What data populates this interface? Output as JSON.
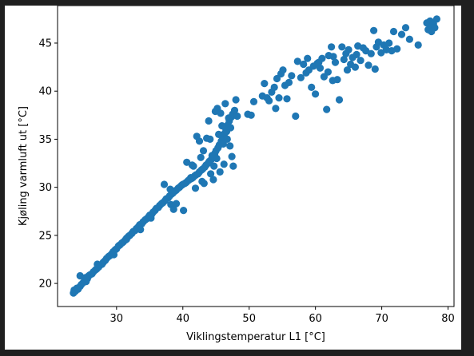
{
  "chart_data": {
    "type": "scatter",
    "title": "",
    "xlabel": "Viklingstemperatur L1 [°C]",
    "ylabel": "Kjøling varmluft ut [°C]",
    "xlim": [
      21.1,
      80.9
    ],
    "ylim": [
      17.6,
      48.9
    ],
    "xticks": [
      30,
      40,
      50,
      60,
      70,
      80
    ],
    "yticks": [
      20,
      25,
      30,
      35,
      40,
      45
    ],
    "xtick_labels": [
      "30",
      "40",
      "50",
      "60",
      "70",
      "80"
    ],
    "ytick_labels": [
      "20",
      "25",
      "30",
      "35",
      "40",
      "45"
    ],
    "grid": false,
    "legend": "none",
    "marker_color": "#1f77b4",
    "series": [
      {
        "points": [
          [
            23.5,
            19.0
          ],
          [
            23.6,
            19.3
          ],
          [
            23.8,
            19.2
          ],
          [
            24.0,
            19.5
          ],
          [
            24.2,
            19.4
          ],
          [
            24.5,
            19.7
          ],
          [
            24.7,
            19.9
          ],
          [
            25.0,
            20.1
          ],
          [
            25.2,
            20.3
          ],
          [
            25.4,
            20.2
          ],
          [
            25.6,
            20.5
          ],
          [
            25.8,
            20.8
          ],
          [
            26.0,
            20.9
          ],
          [
            26.3,
            21.0
          ],
          [
            26.5,
            21.2
          ],
          [
            26.8,
            21.4
          ],
          [
            27.0,
            21.5
          ],
          [
            27.3,
            21.7
          ],
          [
            27.5,
            21.9
          ],
          [
            27.8,
            22.0
          ],
          [
            28.0,
            22.2
          ],
          [
            28.3,
            22.4
          ],
          [
            28.5,
            22.6
          ],
          [
            28.8,
            22.8
          ],
          [
            29.0,
            22.9
          ],
          [
            29.3,
            23.1
          ],
          [
            29.5,
            23.3
          ],
          [
            29.8,
            23.5
          ],
          [
            30.0,
            23.6
          ],
          [
            30.3,
            23.9
          ],
          [
            30.5,
            24.0
          ],
          [
            30.8,
            24.2
          ],
          [
            31.0,
            24.3
          ],
          [
            31.3,
            24.5
          ],
          [
            31.5,
            24.7
          ],
          [
            31.8,
            24.9
          ],
          [
            32.0,
            25.0
          ],
          [
            32.3,
            25.2
          ],
          [
            32.5,
            25.4
          ],
          [
            32.8,
            25.5
          ],
          [
            33.0,
            25.7
          ],
          [
            33.3,
            25.9
          ],
          [
            33.5,
            26.1
          ],
          [
            33.8,
            26.2
          ],
          [
            34.0,
            26.4
          ],
          [
            34.3,
            26.6
          ],
          [
            34.5,
            26.7
          ],
          [
            34.8,
            26.9
          ],
          [
            35.0,
            27.1
          ],
          [
            35.3,
            27.2
          ],
          [
            35.5,
            27.4
          ],
          [
            35.8,
            27.6
          ],
          [
            36.0,
            27.8
          ],
          [
            36.3,
            27.9
          ],
          [
            36.5,
            28.1
          ],
          [
            36.8,
            28.3
          ],
          [
            37.0,
            28.4
          ],
          [
            37.3,
            28.6
          ],
          [
            37.5,
            28.8
          ],
          [
            37.8,
            28.9
          ],
          [
            38.0,
            29.1
          ],
          [
            38.3,
            29.3
          ],
          [
            38.5,
            29.4
          ],
          [
            38.8,
            29.6
          ],
          [
            39.0,
            29.7
          ],
          [
            39.3,
            29.9
          ],
          [
            39.5,
            30.0
          ],
          [
            39.8,
            30.2
          ],
          [
            40.0,
            30.3
          ],
          [
            40.3,
            30.4
          ],
          [
            40.5,
            30.5
          ],
          [
            40.8,
            30.7
          ],
          [
            41.0,
            30.8
          ],
          [
            41.3,
            30.9
          ],
          [
            41.5,
            31.0
          ],
          [
            41.8,
            31.2
          ],
          [
            42.0,
            31.3
          ],
          [
            42.3,
            31.4
          ],
          [
            42.5,
            31.6
          ],
          [
            42.8,
            31.8
          ],
          [
            43.0,
            31.9
          ],
          [
            43.3,
            32.1
          ],
          [
            43.5,
            32.3
          ],
          [
            43.8,
            32.5
          ],
          [
            44.0,
            32.7
          ],
          [
            44.3,
            32.9
          ],
          [
            44.5,
            33.2
          ],
          [
            44.8,
            33.5
          ],
          [
            45.0,
            33.8
          ],
          [
            45.3,
            34.1
          ],
          [
            45.5,
            34.4
          ],
          [
            45.8,
            34.8
          ],
          [
            46.0,
            35.2
          ],
          [
            46.3,
            35.6
          ],
          [
            46.5,
            36.0
          ],
          [
            46.8,
            36.5
          ],
          [
            47.0,
            36.9
          ],
          [
            47.3,
            37.3
          ],
          [
            47.5,
            37.6
          ],
          [
            47.8,
            38.0
          ],
          [
            24.5,
            20.8
          ],
          [
            25.3,
            20.6
          ],
          [
            27.1,
            22.0
          ],
          [
            29.6,
            23.0
          ],
          [
            31.5,
            24.6
          ],
          [
            33.6,
            25.6
          ],
          [
            35.2,
            26.8
          ],
          [
            37.2,
            30.3
          ],
          [
            38.1,
            29.8
          ],
          [
            38.2,
            28.2
          ],
          [
            38.6,
            27.7
          ],
          [
            39.0,
            28.3
          ],
          [
            40.1,
            27.6
          ],
          [
            40.6,
            32.6
          ],
          [
            41.2,
            31.0
          ],
          [
            41.6,
            32.2
          ],
          [
            41.9,
            29.9
          ],
          [
            42.1,
            35.3
          ],
          [
            42.5,
            34.8
          ],
          [
            42.7,
            33.1
          ],
          [
            43.1,
            33.8
          ],
          [
            43.2,
            30.4
          ],
          [
            43.6,
            35.1
          ],
          [
            43.9,
            36.9
          ],
          [
            44.1,
            35.0
          ],
          [
            44.4,
            33.3
          ],
          [
            44.6,
            30.8
          ],
          [
            44.9,
            37.9
          ],
          [
            45.2,
            38.2
          ],
          [
            45.4,
            35.5
          ],
          [
            45.7,
            37.7
          ],
          [
            45.9,
            36.4
          ],
          [
            46.1,
            34.5
          ],
          [
            46.4,
            38.7
          ],
          [
            46.6,
            35.8
          ],
          [
            46.9,
            37.2
          ],
          [
            47.1,
            34.3
          ],
          [
            47.4,
            33.2
          ],
          [
            47.6,
            32.2
          ],
          [
            48.0,
            39.1
          ],
          [
            48.2,
            37.4
          ],
          [
            46.2,
            32.4
          ],
          [
            45.6,
            31.6
          ],
          [
            44.2,
            31.4
          ],
          [
            42.9,
            30.6
          ],
          [
            44.7,
            32.2
          ],
          [
            45.1,
            33.0
          ],
          [
            46.7,
            35.0
          ],
          [
            47.2,
            36.2
          ],
          [
            41.4,
            32.3
          ],
          [
            49.8,
            37.6
          ],
          [
            50.3,
            37.5
          ],
          [
            52.0,
            39.5
          ],
          [
            52.3,
            40.8
          ],
          [
            52.7,
            39.3
          ],
          [
            53.0,
            39.0
          ],
          [
            53.4,
            39.9
          ],
          [
            53.8,
            40.4
          ],
          [
            54.2,
            41.3
          ],
          [
            54.5,
            39.3
          ],
          [
            54.8,
            41.8
          ],
          [
            55.1,
            42.2
          ],
          [
            55.4,
            40.6
          ],
          [
            55.7,
            39.2
          ],
          [
            56.0,
            40.9
          ],
          [
            56.4,
            41.6
          ],
          [
            57.0,
            37.4
          ],
          [
            57.3,
            43.1
          ],
          [
            57.8,
            41.4
          ],
          [
            58.2,
            42.8
          ],
          [
            58.6,
            41.9
          ],
          [
            59.0,
            42.2
          ],
          [
            59.4,
            40.4
          ],
          [
            59.7,
            42.6
          ],
          [
            60.0,
            39.7
          ],
          [
            60.3,
            42.9
          ],
          [
            60.7,
            42.4
          ],
          [
            61.0,
            43.4
          ],
          [
            61.3,
            41.5
          ],
          [
            61.7,
            38.1
          ],
          [
            62.0,
            43.7
          ],
          [
            62.4,
            44.6
          ],
          [
            62.7,
            43.6
          ],
          [
            63.0,
            43.0
          ],
          [
            63.3,
            41.2
          ],
          [
            63.6,
            39.1
          ],
          [
            64.0,
            44.6
          ],
          [
            64.3,
            43.3
          ],
          [
            64.6,
            43.9
          ],
          [
            65.0,
            44.3
          ],
          [
            65.3,
            42.8
          ],
          [
            65.6,
            43.5
          ],
          [
            66.0,
            42.5
          ],
          [
            66.4,
            44.7
          ],
          [
            66.8,
            43.2
          ],
          [
            67.2,
            44.5
          ],
          [
            67.6,
            44.2
          ],
          [
            68.0,
            42.7
          ],
          [
            68.4,
            43.9
          ],
          [
            68.8,
            46.3
          ],
          [
            69.2,
            44.6
          ],
          [
            69.5,
            45.1
          ],
          [
            69.9,
            44.0
          ],
          [
            70.3,
            44.8
          ],
          [
            70.7,
            44.3
          ],
          [
            71.1,
            45.0
          ],
          [
            71.8,
            46.2
          ],
          [
            72.3,
            44.4
          ],
          [
            73.0,
            45.9
          ],
          [
            73.6,
            46.6
          ],
          [
            74.2,
            45.4
          ],
          [
            75.5,
            44.8
          ],
          [
            76.8,
            47.1
          ],
          [
            77.0,
            46.4
          ],
          [
            77.3,
            47.3
          ],
          [
            77.6,
            46.8
          ],
          [
            77.8,
            47.0
          ],
          [
            78.0,
            46.6
          ],
          [
            78.3,
            47.5
          ],
          [
            77.5,
            46.2
          ],
          [
            60.5,
            43.0
          ],
          [
            62.6,
            41.1
          ],
          [
            64.8,
            42.2
          ],
          [
            66.2,
            43.8
          ],
          [
            69.0,
            42.3
          ],
          [
            71.5,
            44.2
          ],
          [
            54.0,
            38.2
          ],
          [
            50.7,
            38.9
          ],
          [
            61.9,
            42.0
          ],
          [
            58.8,
            43.4
          ]
        ]
      }
    ]
  }
}
